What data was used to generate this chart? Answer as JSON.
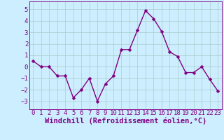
{
  "x": [
    0,
    1,
    2,
    3,
    4,
    5,
    6,
    7,
    8,
    9,
    10,
    11,
    12,
    13,
    14,
    15,
    16,
    17,
    18,
    19,
    20,
    21,
    22,
    23
  ],
  "y": [
    0.5,
    0.0,
    0.0,
    -0.8,
    -0.8,
    -2.7,
    -2.0,
    -1.0,
    -3.0,
    -1.5,
    -0.8,
    1.5,
    1.5,
    3.2,
    4.9,
    4.2,
    3.1,
    1.3,
    0.9,
    -0.5,
    -0.5,
    0.0,
    -1.1,
    -2.1
  ],
  "line_color": "#800080",
  "marker_color": "#800080",
  "bg_color": "#cceeff",
  "grid_color": "#aacccc",
  "xlabel": "Windchill (Refroidissement éolien,°C)",
  "xlim": [
    -0.5,
    23.5
  ],
  "ylim": [
    -3.7,
    5.7
  ],
  "yticks": [
    -3,
    -2,
    -1,
    0,
    1,
    2,
    3,
    4,
    5
  ],
  "xticks": [
    0,
    1,
    2,
    3,
    4,
    5,
    6,
    7,
    8,
    9,
    10,
    11,
    12,
    13,
    14,
    15,
    16,
    17,
    18,
    19,
    20,
    21,
    22,
    23
  ],
  "tick_label_size": 6.5,
  "xlabel_size": 7.5,
  "line_width": 1.0,
  "marker_size": 2.5
}
